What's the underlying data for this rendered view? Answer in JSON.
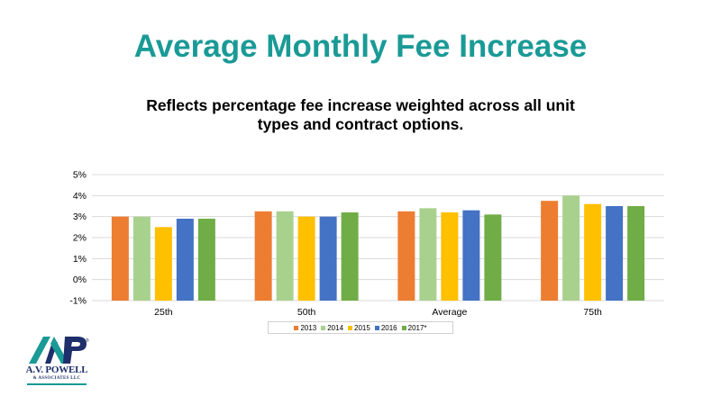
{
  "chart_data": {
    "type": "bar",
    "title": "Average Monthly Fee Increase",
    "subtitle": "Reflects percentage fee increase weighted across all unit types and contract options.",
    "categories": [
      "25th",
      "50th",
      "Average",
      "75th"
    ],
    "series": [
      {
        "name": "2013",
        "color": "#ed7d31",
        "values": [
          3.0,
          3.25,
          3.25,
          3.75
        ]
      },
      {
        "name": "2014",
        "color": "#a9d18e",
        "values": [
          3.0,
          3.25,
          3.4,
          4.0
        ]
      },
      {
        "name": "2015",
        "color": "#ffc000",
        "values": [
          2.5,
          3.0,
          3.2,
          3.6
        ]
      },
      {
        "name": "2016",
        "color": "#4472c4",
        "values": [
          2.9,
          3.0,
          3.3,
          3.5
        ]
      },
      {
        "name": "2017*",
        "color": "#70ad47",
        "values": [
          2.9,
          3.2,
          3.1,
          3.5
        ]
      }
    ],
    "yticks": [
      "5%",
      "4%",
      "3%",
      "2%",
      "1%",
      "0%",
      "-1%"
    ],
    "ylim": [
      -1,
      5
    ],
    "grid": true,
    "legend_position": "bottom",
    "xlabel": "",
    "ylabel": ""
  },
  "logo": {
    "mark": "AVP",
    "name": "A.V. POWELL",
    "tagline": "& ASSOCIATES LLC",
    "registered": "®"
  }
}
